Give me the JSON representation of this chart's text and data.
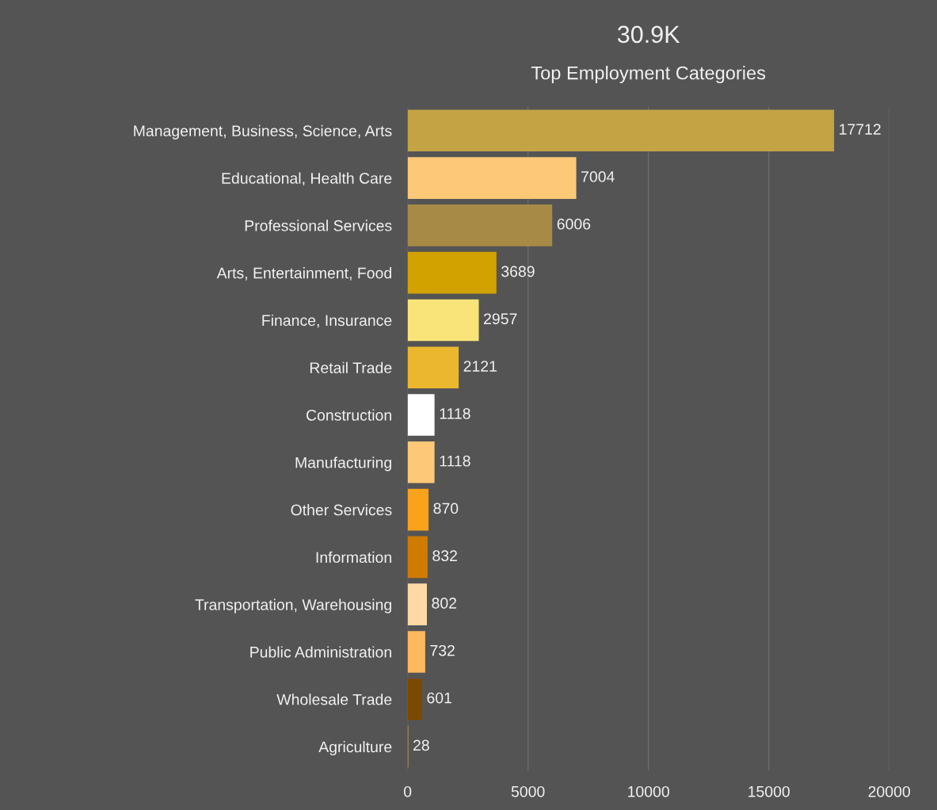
{
  "chart_data": {
    "type": "bar",
    "orientation": "horizontal",
    "title": "30.9K",
    "subtitle": "Top Employment Categories",
    "categories": [
      "Management, Business, Science, Arts",
      "Educational, Health Care",
      "Professional Services",
      "Arts, Entertainment, Food",
      "Finance, Insurance",
      "Retail Trade",
      "Construction",
      "Manufacturing",
      "Other Services",
      "Information",
      "Transportation, Warehousing",
      "Public Administration",
      "Wholesale Trade",
      "Agriculture"
    ],
    "values": [
      17712,
      7004,
      6006,
      3689,
      2957,
      2121,
      1118,
      1118,
      870,
      832,
      802,
      732,
      601,
      28
    ],
    "colors": [
      "#c4a345",
      "#fdc878",
      "#a78a46",
      "#d2a200",
      "#f8e479",
      "#ebb72e",
      "#ffffff",
      "#fdc878",
      "#f9a21b",
      "#cf7b00",
      "#fed9a6",
      "#fdb95e",
      "#7a4a00",
      "#e0a040"
    ],
    "xlim": [
      0,
      20000
    ],
    "xticks": [
      0,
      5000,
      10000,
      15000,
      20000
    ],
    "grid": "x",
    "data_labels": true,
    "legend": false
  }
}
